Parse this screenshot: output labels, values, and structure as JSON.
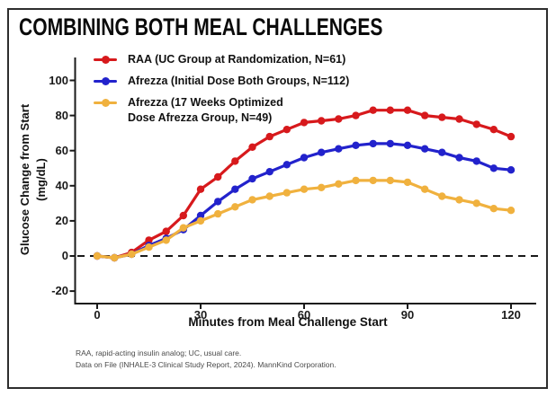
{
  "header": {
    "title": "COMBINING BOTH MEAL CHALLENGES"
  },
  "chart_data": {
    "type": "line",
    "title": "COMBINING BOTH MEAL CHALLENGES",
    "xlabel": "Minutes from Meal Challenge Start",
    "ylabel_line1": "Glucose Change from Start",
    "ylabel_line2": "(mg/dL)",
    "x_ticks": [
      0,
      30,
      60,
      90,
      120
    ],
    "y_ticks": [
      -20,
      0,
      20,
      40,
      60,
      80,
      100
    ],
    "xlim": [
      0,
      120
    ],
    "ylim": [
      -25,
      105
    ],
    "grid": false,
    "legend_position": "top-left-inside",
    "reference_line_y": 0,
    "x": [
      0,
      5,
      10,
      15,
      20,
      25,
      30,
      35,
      40,
      45,
      50,
      55,
      60,
      65,
      70,
      75,
      80,
      85,
      90,
      95,
      100,
      105,
      110,
      115,
      120
    ],
    "series": [
      {
        "name": "RAA (UC Group at Randomization, N=61)",
        "legend_line1": "RAA (UC Group at Randomization, N=61)",
        "legend_line2": "",
        "color": "#d7191c",
        "values": [
          0,
          -1,
          2,
          9,
          14,
          23,
          38,
          45,
          54,
          62,
          68,
          72,
          76,
          77,
          78,
          80,
          83,
          83,
          83,
          80,
          79,
          78,
          75,
          72,
          68
        ]
      },
      {
        "name": "Afrezza (Initial Dose Both Groups, N=112)",
        "legend_line1": "Afrezza (Initial Dose Both Groups, N=112)",
        "legend_line2": "",
        "color": "#2222cc",
        "values": [
          0,
          -1,
          1,
          6,
          10,
          15,
          23,
          31,
          38,
          44,
          48,
          52,
          56,
          59,
          61,
          63,
          64,
          64,
          63,
          61,
          59,
          56,
          54,
          50,
          49
        ]
      },
      {
        "name": "Afrezza (17 Weeks Optimized Dose Afrezza Group, N=49)",
        "legend_line1": "Afrezza (17 Weeks Optimized",
        "legend_line2": "Dose Afrezza Group, N=49)",
        "color": "#f0b13e",
        "values": [
          0,
          -1,
          1,
          5,
          9,
          16,
          20,
          24,
          28,
          32,
          34,
          36,
          38,
          39,
          41,
          43,
          43,
          43,
          42,
          38,
          34,
          32,
          30,
          27,
          26
        ]
      }
    ]
  },
  "colors": {
    "axis": "#1a1a1a",
    "border": "#2e2e2e",
    "zero_line": "#1a1a1a",
    "footnote_text": "#4a4a4a"
  },
  "footnotes": [
    "RAA, rapid-acting insulin  analog; UC, usual care.",
    "Data on File (INHALE-3  Clinical Study Report, 2024). MannKind Corporation."
  ]
}
